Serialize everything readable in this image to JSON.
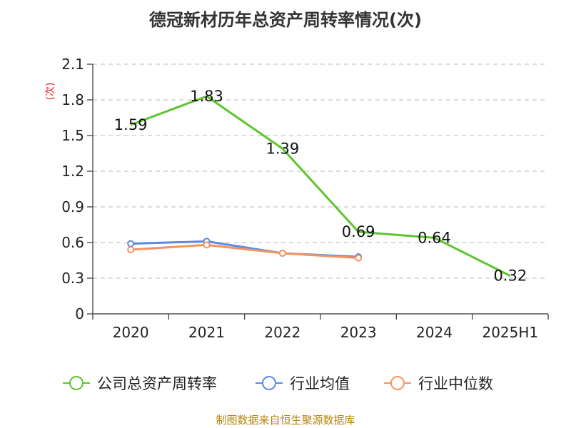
{
  "title": "德冠新材历年总资产周转率情况(次)",
  "source": "制图数据来自恒生聚源数据库",
  "chart_data": {
    "type": "line",
    "title": "德冠新材历年总资产周转率情况(次)",
    "ylabel": "(次)",
    "xlabel": "",
    "categories": [
      "2020",
      "2021",
      "2022",
      "2023",
      "2024",
      "2025H1"
    ],
    "ylim": [
      0,
      2.1
    ],
    "yticks": [
      0,
      0.3,
      0.6,
      0.9,
      1.2,
      1.5,
      1.8,
      2.1
    ],
    "ytick_labels": [
      "0",
      "0.3",
      "0.6",
      "0.9",
      "1.2",
      "1.5",
      "1.8",
      "2.1"
    ],
    "grid": true,
    "legend_position": "bottom",
    "series": [
      {
        "name": "公司总资产周转率",
        "color": "#5ec42b",
        "values": [
          1.59,
          1.83,
          1.39,
          0.69,
          0.64,
          0.32
        ],
        "labels": [
          "1.59",
          "1.83",
          "1.39",
          "0.69",
          "0.64",
          "0.32"
        ],
        "show_labels": true,
        "markers": false
      },
      {
        "name": "行业均值",
        "color": "#5b8ae0",
        "values": [
          0.59,
          0.61,
          0.51,
          0.48,
          null,
          null
        ],
        "show_labels": false,
        "markers": true
      },
      {
        "name": "行业中位数",
        "color": "#f5935f",
        "values": [
          0.54,
          0.58,
          0.51,
          0.47,
          null,
          null
        ],
        "show_labels": false,
        "markers": true
      }
    ]
  }
}
